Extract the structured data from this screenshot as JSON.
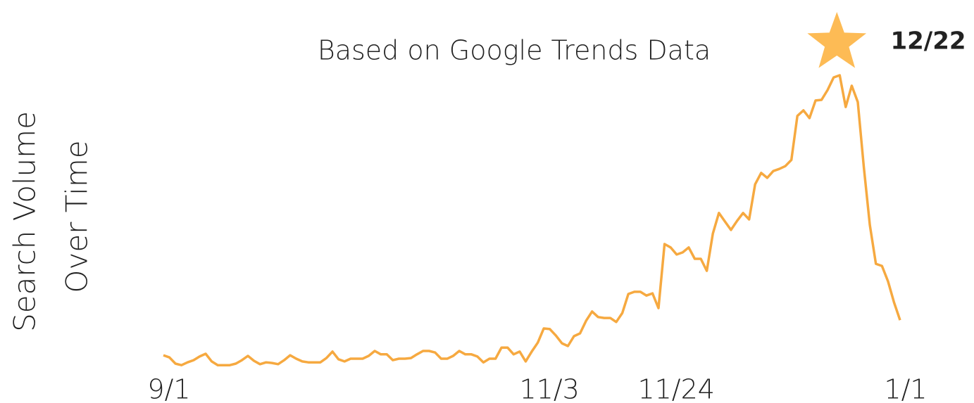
{
  "chart_data": {
    "type": "line",
    "title": "Based on Google Trends Data",
    "y_label": [
      "Search Volume",
      "Over Time"
    ],
    "annotation": {
      "text": "12/22",
      "index": 112
    },
    "color": "#f6a940",
    "marker_color": "#fdbb55",
    "ylim": [
      0,
      100
    ],
    "categories": [
      "9/1",
      null,
      null,
      null,
      null,
      null,
      null,
      null,
      null,
      null,
      null,
      null,
      null,
      null,
      null,
      null,
      null,
      null,
      null,
      null,
      null,
      null,
      null,
      null,
      null,
      null,
      null,
      null,
      null,
      null,
      null,
      null,
      null,
      null,
      null,
      null,
      null,
      null,
      null,
      null,
      null,
      null,
      null,
      null,
      null,
      null,
      null,
      null,
      null,
      null,
      null,
      null,
      null,
      null,
      null,
      null,
      null,
      null,
      null,
      null,
      null,
      null,
      null,
      "11/3",
      null,
      null,
      null,
      null,
      null,
      null,
      null,
      null,
      null,
      null,
      null,
      null,
      null,
      null,
      null,
      null,
      null,
      null,
      null,
      null,
      "11/24",
      null,
      null,
      null,
      null,
      null,
      null,
      null,
      null,
      null,
      null,
      null,
      null,
      null,
      null,
      null,
      null,
      null,
      null,
      null,
      null,
      null,
      null,
      null,
      null,
      null,
      null,
      null,
      null,
      null,
      null,
      null,
      null,
      null,
      null,
      null,
      null,
      null,
      "1/1"
    ],
    "values": [
      9.1,
      8.4,
      6.4,
      5.9,
      6.8,
      7.5,
      8.7,
      9.6,
      7.1,
      5.9,
      5.9,
      5.9,
      6.4,
      7.5,
      8.9,
      7.3,
      6.2,
      6.8,
      6.6,
      6.2,
      7.5,
      9.1,
      8.0,
      7.1,
      6.8,
      6.8,
      6.8,
      8.2,
      10.3,
      7.8,
      7.1,
      8.0,
      8.0,
      8.0,
      8.9,
      10.5,
      9.4,
      9.4,
      7.5,
      8.0,
      8.0,
      8.2,
      9.4,
      10.5,
      10.5,
      10.0,
      8.0,
      8.0,
      8.9,
      10.5,
      9.4,
      9.4,
      8.7,
      6.8,
      8.0,
      8.0,
      11.6,
      11.6,
      9.4,
      10.3,
      7.1,
      10.3,
      13.2,
      17.8,
      17.6,
      15.5,
      13.0,
      12.1,
      15.3,
      16.2,
      20.3,
      23.3,
      21.5,
      21.2,
      21.2,
      19.9,
      22.8,
      29.0,
      29.7,
      29.7,
      28.5,
      29.2,
      24.4,
      45.2,
      44.1,
      41.8,
      42.5,
      44.1,
      40.4,
      40.4,
      36.5,
      48.6,
      55.3,
      52.5,
      49.8,
      52.7,
      55.3,
      53.2,
      64.6,
      68.3,
      66.7,
      68.9,
      69.6,
      70.5,
      72.5,
      86.8,
      88.6,
      86.1,
      91.8,
      92.0,
      95.2,
      99.3,
      100,
      89.7,
      96.6,
      91.3,
      70.1,
      51.4,
      38.8,
      38.1,
      33.1,
      26.3,
      20.5
    ]
  }
}
